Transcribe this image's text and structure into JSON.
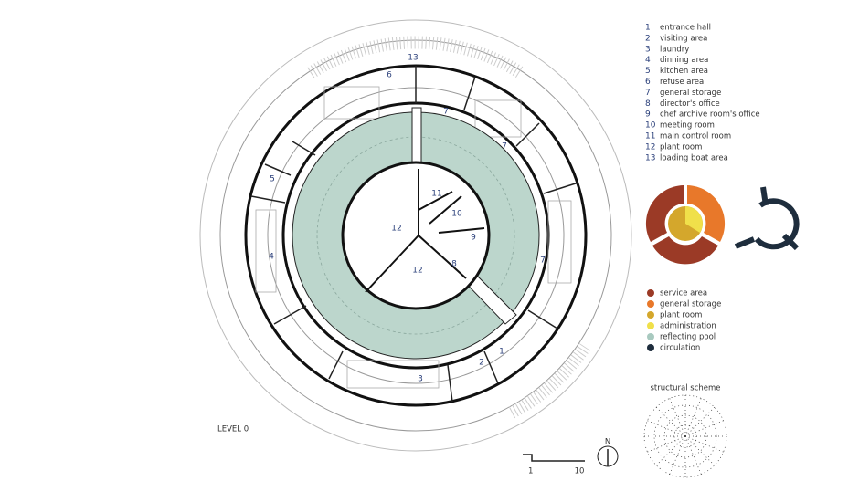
{
  "plan_title": "LEVEL 0",
  "room_legend": [
    {
      "number": 1,
      "label": "entrance hall"
    },
    {
      "number": 2,
      "label": "visiting area"
    },
    {
      "number": 3,
      "label": "laundry"
    },
    {
      "number": 4,
      "label": "dinning area"
    },
    {
      "number": 5,
      "label": "kitchen area"
    },
    {
      "number": 6,
      "label": "refuse area"
    },
    {
      "number": 7,
      "label": "general storage"
    },
    {
      "number": 8,
      "label": "director's office"
    },
    {
      "number": 9,
      "label": "chef archive room's office"
    },
    {
      "number": 10,
      "label": "meeting room"
    },
    {
      "number": 11,
      "label": "main control room"
    },
    {
      "number": 12,
      "label": "plant room"
    },
    {
      "number": 13,
      "label": "loading boat area"
    }
  ],
  "plan_labels": [
    13,
    6,
    7,
    7,
    5,
    4,
    7,
    11,
    10,
    9,
    12,
    12,
    8,
    1,
    2,
    3
  ],
  "zone_legend": [
    {
      "label": "service area",
      "color": "#9b3a26"
    },
    {
      "label": "general storage",
      "color": "#e8782a"
    },
    {
      "label": "plant room",
      "color": "#d4a72c"
    },
    {
      "label": "administration",
      "color": "#f0e04a"
    },
    {
      "label": "reflecting pool",
      "color": "#a8c9bf"
    },
    {
      "label": "circulation",
      "color": "#1e2d3d"
    }
  ],
  "structural_title": "structural scheme",
  "scale_bar": {
    "start": "1",
    "end": "10"
  },
  "north": "N"
}
